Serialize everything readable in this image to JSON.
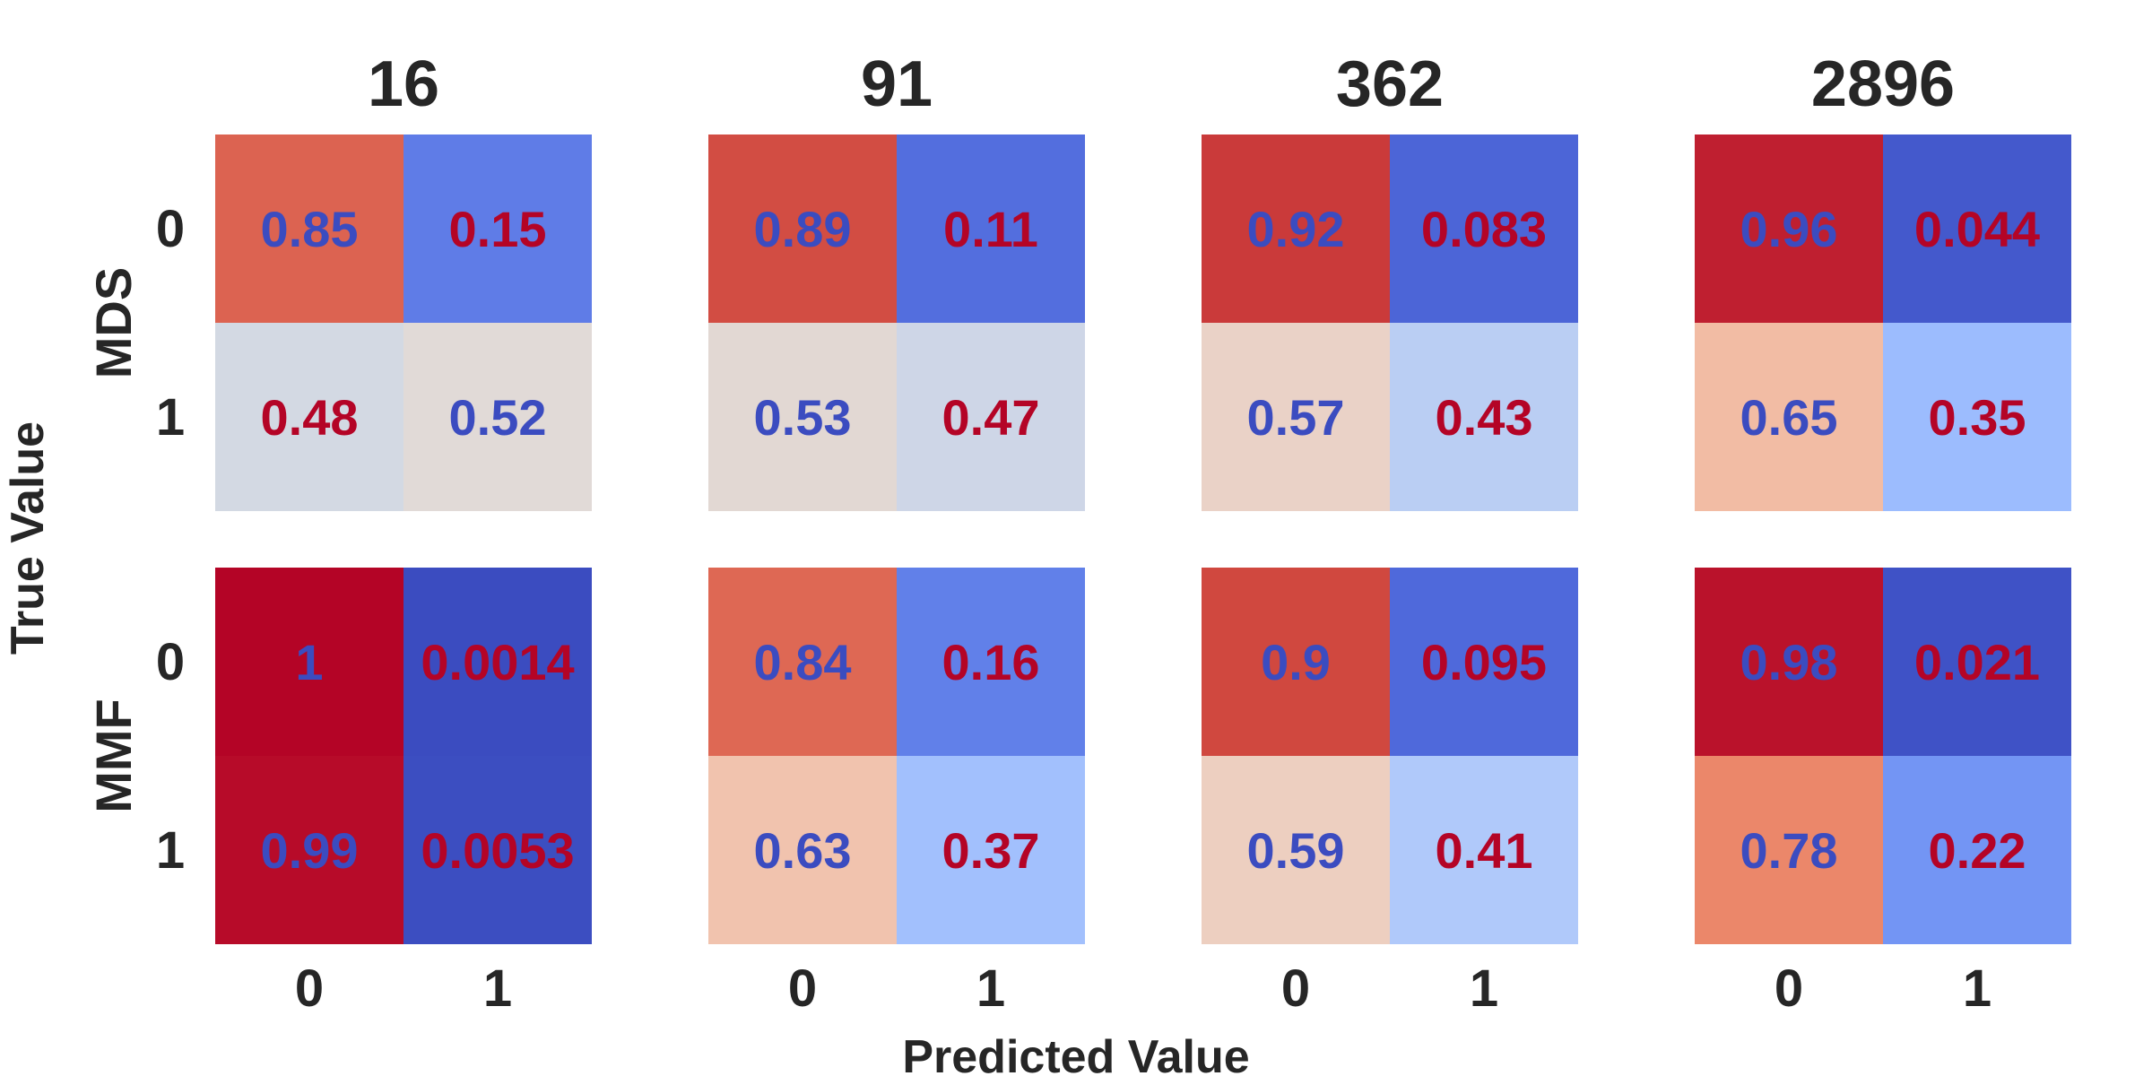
{
  "chart_data": {
    "type": "heatmap",
    "xlabel": "Predicted Value",
    "ylabel": "True Value",
    "colormap": "coolwarm",
    "value_range": [
      0,
      1
    ],
    "low_color": "#3b4cc0",
    "high_color": "#b40426",
    "text_colors": {
      "on_high": "#3b4cc0",
      "on_low": "#b40426"
    },
    "x_tick_labels": [
      "0",
      "1"
    ],
    "y_tick_labels": [
      "0",
      "1"
    ],
    "column_titles": [
      "16",
      "91",
      "362",
      "2896"
    ],
    "row_labels": [
      "MDS",
      "MMF"
    ],
    "panels": [
      {
        "row": "MDS",
        "column": "16",
        "values": [
          [
            0.85,
            0.15
          ],
          [
            0.48,
            0.52
          ]
        ],
        "labels": [
          [
            "0.85",
            "0.15"
          ],
          [
            "0.48",
            "0.52"
          ]
        ]
      },
      {
        "row": "MDS",
        "column": "91",
        "values": [
          [
            0.89,
            0.11
          ],
          [
            0.53,
            0.47
          ]
        ],
        "labels": [
          [
            "0.89",
            "0.11"
          ],
          [
            "0.53",
            "0.47"
          ]
        ]
      },
      {
        "row": "MDS",
        "column": "362",
        "values": [
          [
            0.92,
            0.083
          ],
          [
            0.57,
            0.43
          ]
        ],
        "labels": [
          [
            "0.92",
            "0.083"
          ],
          [
            "0.57",
            "0.43"
          ]
        ]
      },
      {
        "row": "MDS",
        "column": "2896",
        "values": [
          [
            0.96,
            0.044
          ],
          [
            0.65,
            0.35
          ]
        ],
        "labels": [
          [
            "0.96",
            "0.044"
          ],
          [
            "0.65",
            "0.35"
          ]
        ]
      },
      {
        "row": "MMF",
        "column": "16",
        "values": [
          [
            1,
            0.0014
          ],
          [
            0.99,
            0.0053
          ]
        ],
        "labels": [
          [
            "1",
            "0.0014"
          ],
          [
            "0.99",
            "0.0053"
          ]
        ]
      },
      {
        "row": "MMF",
        "column": "91",
        "values": [
          [
            0.84,
            0.16
          ],
          [
            0.63,
            0.37
          ]
        ],
        "labels": [
          [
            "0.84",
            "0.16"
          ],
          [
            "0.63",
            "0.37"
          ]
        ]
      },
      {
        "row": "MMF",
        "column": "362",
        "values": [
          [
            0.9,
            0.095
          ],
          [
            0.59,
            0.41
          ]
        ],
        "labels": [
          [
            "0.9",
            "0.095"
          ],
          [
            "0.59",
            "0.41"
          ]
        ]
      },
      {
        "row": "MMF",
        "column": "2896",
        "values": [
          [
            0.98,
            0.021
          ],
          [
            0.78,
            0.22
          ]
        ],
        "labels": [
          [
            "0.98",
            "0.021"
          ],
          [
            "0.78",
            "0.22"
          ]
        ]
      }
    ]
  }
}
